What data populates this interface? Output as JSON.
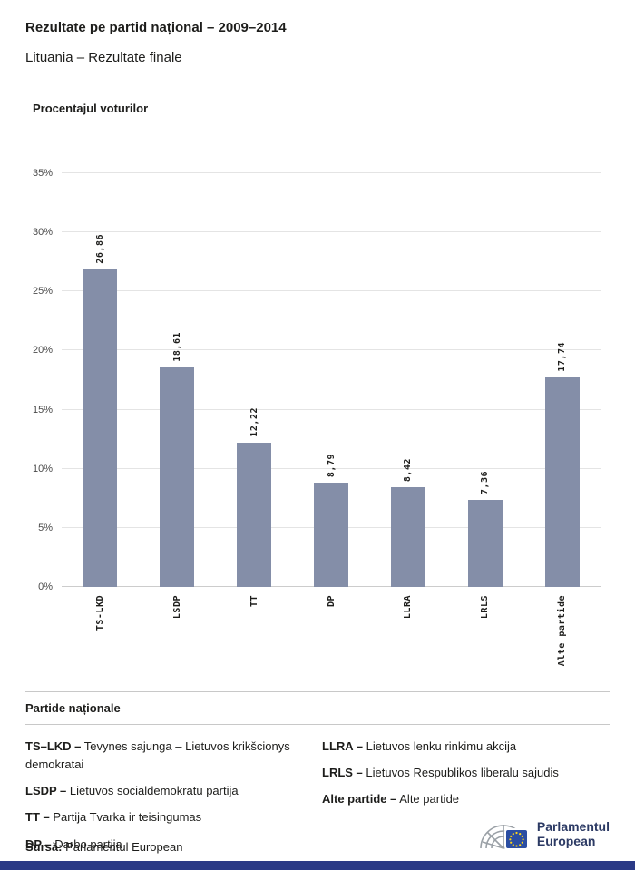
{
  "header": {
    "title": "Rezultate pe partid național – 2009–2014",
    "subtitle": "Lituania – Rezultate finale"
  },
  "chart": {
    "section_title": "Procentajul voturilor"
  },
  "chart_data": {
    "type": "bar",
    "title": "Procentajul voturilor",
    "categories": [
      "TS-LKD",
      "LSDP",
      "TT",
      "DP",
      "LLRA",
      "LRLS",
      "Alte partide"
    ],
    "values": [
      26.86,
      18.61,
      12.22,
      8.79,
      8.42,
      7.36,
      17.74
    ],
    "value_labels": [
      "26,86",
      "18,61",
      "12,22",
      "8,79",
      "8,42",
      "7,36",
      "17,74"
    ],
    "xlabel": "",
    "ylabel": "",
    "ylim": [
      0,
      35
    ],
    "y_ticks": [
      "0%",
      "5%",
      "10%",
      "15%",
      "20%",
      "25%",
      "30%",
      "35%"
    ],
    "grid": true,
    "legend_position": "none",
    "bar_color": "#848ea8"
  },
  "legend": {
    "heading": "Partide naționale",
    "items_left": [
      {
        "abbr": "TS–LKD –",
        "name": "Tevynes sajunga – Lietuvos krikšcionys demokratai"
      },
      {
        "abbr": "LSDP –",
        "name": "Lietuvos socialdemokratu partija"
      },
      {
        "abbr": "TT –",
        "name": "Partija Tvarka ir teisingumas"
      },
      {
        "abbr": "DP –",
        "name": "Darbo partija"
      }
    ],
    "items_right": [
      {
        "abbr": "LLRA –",
        "name": "Lietuvos lenku rinkimu akcija"
      },
      {
        "abbr": "LRLS –",
        "name": "Lietuvos Respublikos liberalu sajudis"
      },
      {
        "abbr": "Alte partide –",
        "name": "Alte partide"
      }
    ]
  },
  "footer": {
    "source_label": "Sursă:",
    "source_value": "Parlamentul European",
    "logo_line1": "Parlamentul",
    "logo_line2": "European"
  },
  "colors": {
    "bar": "#848ea8",
    "strip": "#2b3a86",
    "logo_navy": "#2c3a64",
    "eu_blue": "#2b4ea2",
    "eu_yellow": "#ffd617"
  }
}
